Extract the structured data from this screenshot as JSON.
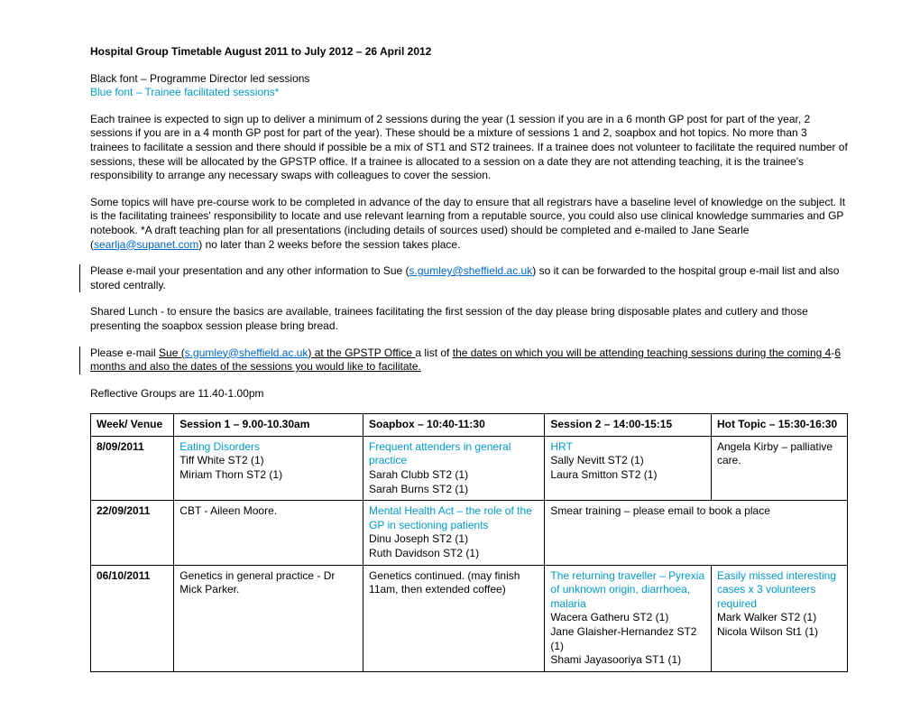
{
  "title": "Hospital Group Timetable August 2011 to July 2012 – 26 April 2012",
  "legend_black": "Black font – Programme Director led sessions",
  "legend_blue": "Blue font – Trainee facilitated sessions*",
  "para1": "Each trainee is expected to sign up to deliver a minimum of 2 sessions during the year (1 session if you are in a 6 month GP post for part of the year, 2 sessions if you are in a 4 month GP post for part of the year).  These should be a mixture of sessions 1 and 2, soapbox and hot topics. No more than 3 trainees to facilitate a session and there should if possible be a mix of ST1 and ST2 trainees.  If a trainee does not volunteer to facilitate the required number of sessions, these will be allocated by the GPSTP office.  If a trainee is allocated to a session on a date they are not attending teaching, it is the trainee's responsibility to arrange any necessary swaps with colleagues to cover the session.",
  "para2_a": "Some topics will have pre-course work to be completed in advance of the day to ensure that all registrars have a baseline level of knowledge on the subject. It is the facilitating trainees' responsibility to locate and use relevant learning from a reputable source, you could also use clinical knowledge summaries and GP notebook.  *A draft teaching plan for all presentations (including details of sources used) should be completed and e-mailed to Jane Searle (",
  "para2_link": "searlja@supanet.com",
  "para2_b": ") no later than 2 weeks before the session takes place.",
  "para3_a": "Please e-mail your presentation and any other information to Sue (",
  "para3_link": "s.gumley@sheffield.ac.uk",
  "para3_b": ") so it can be forwarded to the hospital group e-mail list and also stored centrally.",
  "para4": "Shared Lunch - to ensure the basics are available, trainees facilitating the first session of the day please bring disposable plates and cutlery and those presenting the soapbox session please bring bread.",
  "para5_a": "Please e-mail ",
  "para5_sue": "Sue (",
  "para5_link": "s.gumley@sheffield.ac.uk",
  "para5_b": ") at the GPSTP Office ",
  "para5_c": "a list of ",
  "para5_d": "the dates on which you will be attending teaching sessions during the coming 4",
  "para5_e": "-",
  "para5_f": "6 months and also the dates of the sessions you would like to facilitate.",
  "para6": "Reflective Groups are 11.40-1.00pm",
  "colors": {
    "text": "#000000",
    "blue_font": "#0099cc",
    "link": "#0066cc",
    "background": "#ffffff",
    "border": "#000000"
  },
  "table": {
    "headers": [
      "Week/\nVenue",
      "Session 1 – 9.00-10.30am",
      "Soapbox – 10:40-11:30",
      "Session 2 – 14:00-15:15",
      "Hot Topic – 15:30-16:30"
    ],
    "rows": [
      {
        "date": "8/09/2011",
        "s1_blue": "Eating Disorders",
        "s1_rest": "Tiff White ST2 (1)\nMiriam Thorn ST2 (1)",
        "sb_blue": "Frequent attenders in general practice",
        "sb_rest": "Sarah Clubb ST2 (1)\nSarah Burns ST2 (1)",
        "s2_blue": "HRT",
        "s2_rest": "Sally Nevitt ST2 (1)\nLaura Smitton ST2 (1)",
        "ht_blue": "",
        "ht_rest": "Angela Kirby – palliative care."
      },
      {
        "date": "22/09/2011",
        "s1_blue": "",
        "s1_rest": "CBT - Aileen Moore.",
        "sb_blue": "Mental Health Act – the role of the GP in sectioning patients",
        "sb_rest": "Dinu Joseph ST2 (1)\nRuth Davidson ST2 (1)",
        "s2_blue": "",
        "s2_rest": "Smear training – please email to book a place",
        "s2_colspan": 2,
        "ht_blue": "",
        "ht_rest": ""
      },
      {
        "date": "06/10/2011",
        "s1_blue": "",
        "s1_rest": "Genetics in general practice - Dr Mick Parker.",
        "sb_blue": "",
        "sb_rest": "Genetics continued.  (may finish 11am, then extended coffee)",
        "s2_blue": "The returning traveller – Pyrexia of unknown origin, diarrhoea, malaria",
        "s2_rest": "Wacera Gatheru ST2 (1)\nJane Glaisher-Hernandez ST2 (1)\nShami Jayasooriya ST1 (1)",
        "ht_blue": "Easily missed interesting cases x 3 volunteers required",
        "ht_rest": "Mark Walker ST2 (1)\nNicola Wilson St1 (1)"
      }
    ]
  }
}
